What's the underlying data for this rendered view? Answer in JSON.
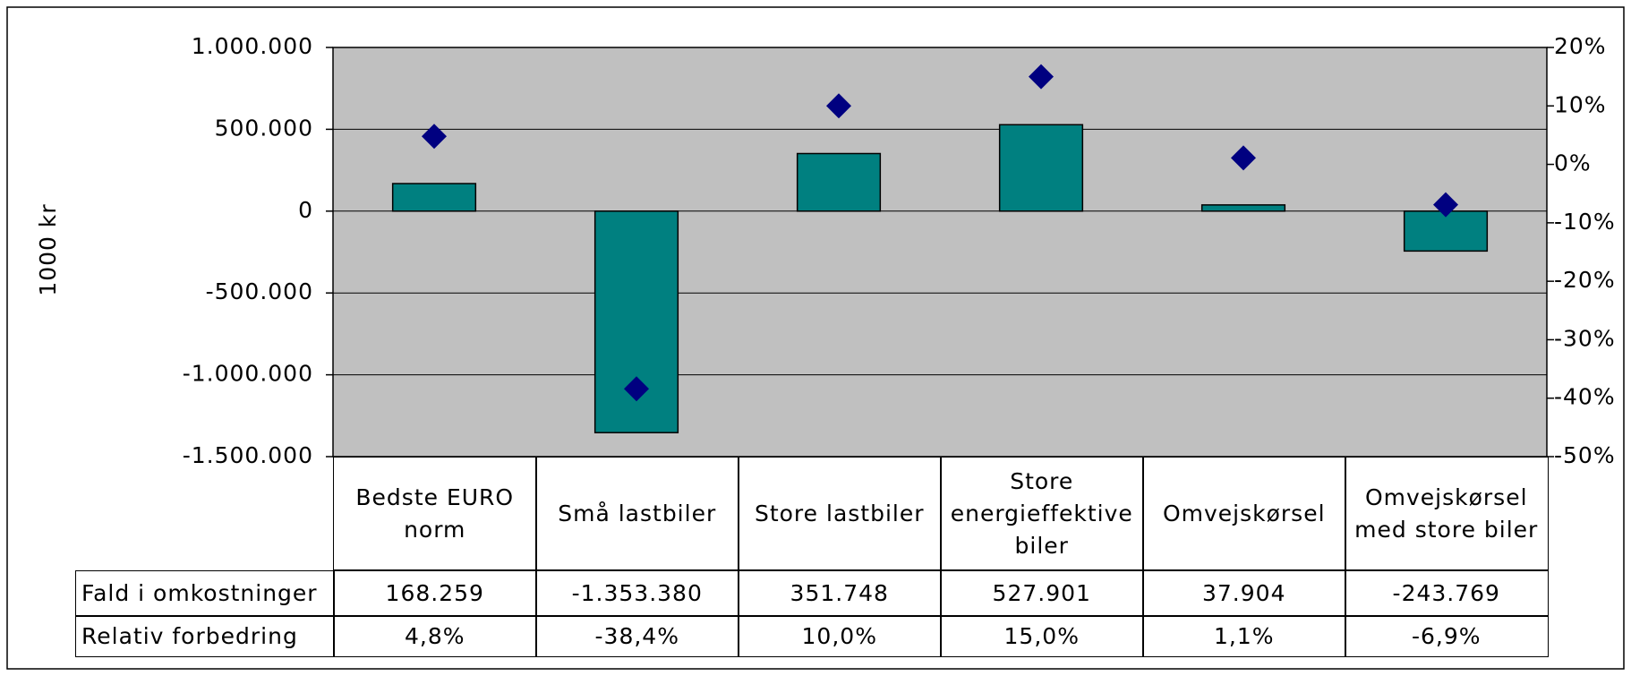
{
  "chart_data": {
    "type": "bar",
    "y_label": "1000 kr",
    "categories": [
      "Bedste EURO norm",
      "Små lastbiler",
      "Store lastbiler",
      "Store energieffektive biler",
      "Omvejskørsel",
      "Omvejskørsel med store biler"
    ],
    "series": [
      {
        "name": "Fald i omkostninger",
        "type": "bar",
        "color": "#008080",
        "values": [
          168259,
          -1353380,
          351748,
          527901,
          37904,
          -243769
        ],
        "value_labels": [
          "168.259",
          "-1.353.380",
          "351.748",
          "527.901",
          "37.904",
          "-243.769"
        ]
      },
      {
        "name": "Relativ forbedring",
        "type": "scatter",
        "axis": "y2",
        "color": "#000080",
        "values": [
          4.8,
          -38.4,
          10.0,
          15.0,
          1.1,
          -6.9
        ],
        "value_labels": [
          "4,8%",
          "-38,4%",
          "10,0%",
          "15,0%",
          "1,1%",
          "-6,9%"
        ]
      }
    ],
    "ylim": [
      -1500000,
      1000000
    ],
    "yticks": [
      {
        "value": -1500000,
        "label": "-1.500.000"
      },
      {
        "value": -1000000,
        "label": "-1.000.000"
      },
      {
        "value": -500000,
        "label": "-500.000"
      },
      0,
      {
        "value": 500000,
        "label": "500.000"
      },
      {
        "value": 1000000,
        "label": "1.000.000"
      }
    ],
    "y2lim": [
      -50,
      20
    ],
    "y2ticks": [
      {
        "value": -50,
        "label": "-50%"
      },
      {
        "value": -40,
        "label": "-40%"
      },
      {
        "value": -30,
        "label": "-30%"
      },
      {
        "value": -20,
        "label": "-20%"
      },
      {
        "value": -10,
        "label": "-10%"
      },
      {
        "value": 0,
        "label": "0%"
      },
      {
        "value": 10,
        "label": "10%"
      },
      {
        "value": 20,
        "label": "20%"
      }
    ],
    "grid": true,
    "plot_background": "#c0c0c0"
  }
}
